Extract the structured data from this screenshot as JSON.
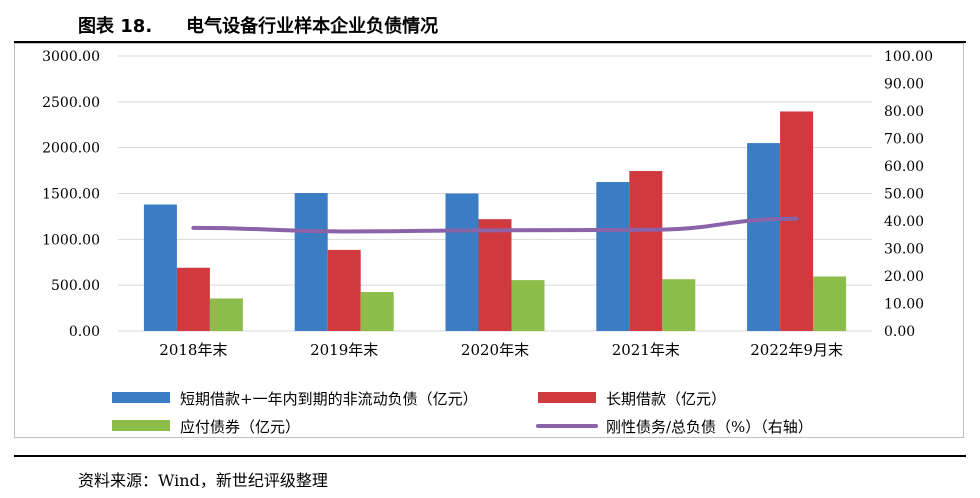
{
  "header": {
    "figure_number": "图表 18.",
    "title": "电气设备行业样本企业负债情况"
  },
  "source_note": "资料来源：Wind，新世纪评级整理",
  "chart_data": {
    "type": "bar",
    "title": "电气设备行业样本企业负债情况",
    "categories": [
      "2018年末",
      "2019年末",
      "2020年末",
      "2021年末",
      "2022年9月末"
    ],
    "y_left": {
      "ylim": [
        0,
        3000
      ],
      "ticks": [
        "0.00",
        "500.00",
        "1000.00",
        "1500.00",
        "2000.00",
        "2500.00",
        "3000.00"
      ]
    },
    "y_right": {
      "ylim": [
        0,
        100
      ],
      "ticks": [
        "0.00",
        "10.00",
        "20.00",
        "30.00",
        "40.00",
        "50.00",
        "60.00",
        "70.00",
        "80.00",
        "90.00",
        "100.00"
      ]
    },
    "grid": true,
    "legend_position": "bottom",
    "series": [
      {
        "name": "短期借款+一年内到期的非流动负债（亿元）",
        "type": "bar",
        "axis": "left",
        "color": "#3a7dc4",
        "values": [
          1380,
          1505,
          1500,
          1625,
          2050
        ]
      },
      {
        "name": "长期借款（亿元）",
        "type": "bar",
        "axis": "left",
        "color": "#d0393e",
        "values": [
          690,
          885,
          1220,
          1745,
          2395
        ]
      },
      {
        "name": "应付债券（亿元）",
        "type": "bar",
        "axis": "left",
        "color": "#8cbd4a",
        "values": [
          355,
          425,
          555,
          565,
          595
        ]
      },
      {
        "name": "刚性债务/总负债（%）（右轴）",
        "type": "line",
        "axis": "right",
        "color": "#8a63a8",
        "values": [
          37.5,
          36.2,
          36.6,
          36.8,
          40.8
        ]
      }
    ]
  }
}
